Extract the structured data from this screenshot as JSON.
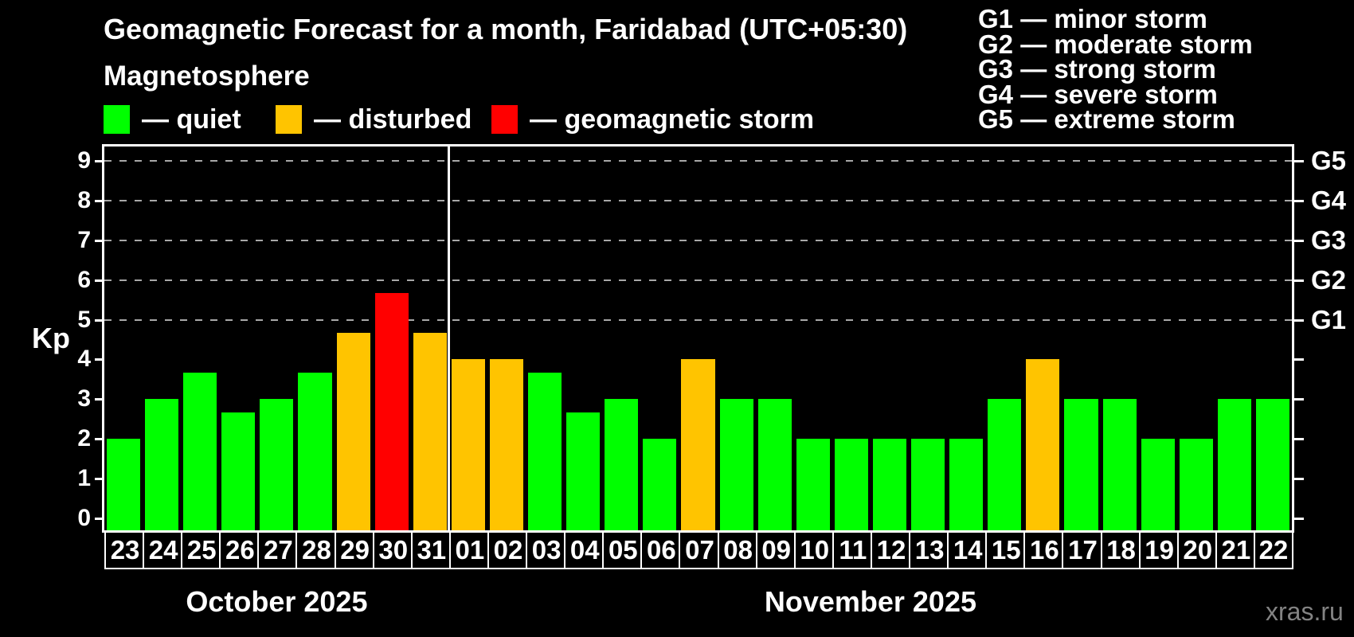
{
  "header": {
    "title": "Geomagnetic Forecast for a month, Faridabad (UTC+05:30)",
    "subtitle": "Magnetosphere",
    "watermark": "xras.ru"
  },
  "legend": {
    "items": [
      {
        "key": "quiet",
        "label": "— quiet",
        "color": "#00ff00"
      },
      {
        "key": "disturbed",
        "label": "— disturbed",
        "color": "#ffc400"
      },
      {
        "key": "storm",
        "label": "— geomagnetic storm",
        "color": "#ff0000"
      }
    ]
  },
  "storm_scale": {
    "items": [
      "G1 — minor storm",
      "G2 — moderate storm",
      "G3 — strong storm",
      "G4 — severe storm",
      "G5 — extreme storm"
    ]
  },
  "chart_data": {
    "type": "bar",
    "title": "Geomagnetic Forecast for a month, Faridabad (UTC+05:30)",
    "ylabel": "Kp",
    "ylim": [
      -0.36,
      9.36
    ],
    "y_ticks": [
      0,
      1,
      2,
      3,
      4,
      5,
      6,
      7,
      8,
      9
    ],
    "gridlines_at": [
      5,
      6,
      7,
      8,
      9
    ],
    "grid": "dashed, horizontal, Kp 5 to 9 only",
    "legend_position": "top-left",
    "right_axis": [
      {
        "kp": 5,
        "label": "G1"
      },
      {
        "kp": 6,
        "label": "G2"
      },
      {
        "kp": 7,
        "label": "G3"
      },
      {
        "kp": 8,
        "label": "G4"
      },
      {
        "kp": 9,
        "label": "G5"
      }
    ],
    "colors": {
      "quiet": "#00ff00",
      "disturbed": "#ffc400",
      "storm": "#ff0000"
    },
    "groups": [
      {
        "label": "October 2025",
        "days": [
          {
            "day": "23",
            "kp": 2.0,
            "level": "quiet"
          },
          {
            "day": "24",
            "kp": 3.0,
            "level": "quiet"
          },
          {
            "day": "25",
            "kp": 3.67,
            "level": "quiet"
          },
          {
            "day": "26",
            "kp": 2.67,
            "level": "quiet"
          },
          {
            "day": "27",
            "kp": 3.0,
            "level": "quiet"
          },
          {
            "day": "28",
            "kp": 3.67,
            "level": "quiet"
          },
          {
            "day": "29",
            "kp": 4.67,
            "level": "disturbed"
          },
          {
            "day": "30",
            "kp": 5.67,
            "level": "storm"
          },
          {
            "day": "31",
            "kp": 4.67,
            "level": "disturbed"
          }
        ]
      },
      {
        "label": "November 2025",
        "days": [
          {
            "day": "01",
            "kp": 4.0,
            "level": "disturbed"
          },
          {
            "day": "02",
            "kp": 4.0,
            "level": "disturbed"
          },
          {
            "day": "03",
            "kp": 3.67,
            "level": "quiet"
          },
          {
            "day": "04",
            "kp": 2.67,
            "level": "quiet"
          },
          {
            "day": "05",
            "kp": 3.0,
            "level": "quiet"
          },
          {
            "day": "06",
            "kp": 2.0,
            "level": "quiet"
          },
          {
            "day": "07",
            "kp": 4.0,
            "level": "disturbed"
          },
          {
            "day": "08",
            "kp": 3.0,
            "level": "quiet"
          },
          {
            "day": "09",
            "kp": 3.0,
            "level": "quiet"
          },
          {
            "day": "10",
            "kp": 2.0,
            "level": "quiet"
          },
          {
            "day": "11",
            "kp": 2.0,
            "level": "quiet"
          },
          {
            "day": "12",
            "kp": 2.0,
            "level": "quiet"
          },
          {
            "day": "13",
            "kp": 2.0,
            "level": "quiet"
          },
          {
            "day": "14",
            "kp": 2.0,
            "level": "quiet"
          },
          {
            "day": "15",
            "kp": 3.0,
            "level": "quiet"
          },
          {
            "day": "16",
            "kp": 4.0,
            "level": "disturbed"
          },
          {
            "day": "17",
            "kp": 3.0,
            "level": "quiet"
          },
          {
            "day": "18",
            "kp": 3.0,
            "level": "quiet"
          },
          {
            "day": "19",
            "kp": 2.0,
            "level": "quiet"
          },
          {
            "day": "20",
            "kp": 2.0,
            "level": "quiet"
          },
          {
            "day": "21",
            "kp": 3.0,
            "level": "quiet"
          },
          {
            "day": "22",
            "kp": 3.0,
            "level": "quiet"
          }
        ]
      }
    ]
  }
}
